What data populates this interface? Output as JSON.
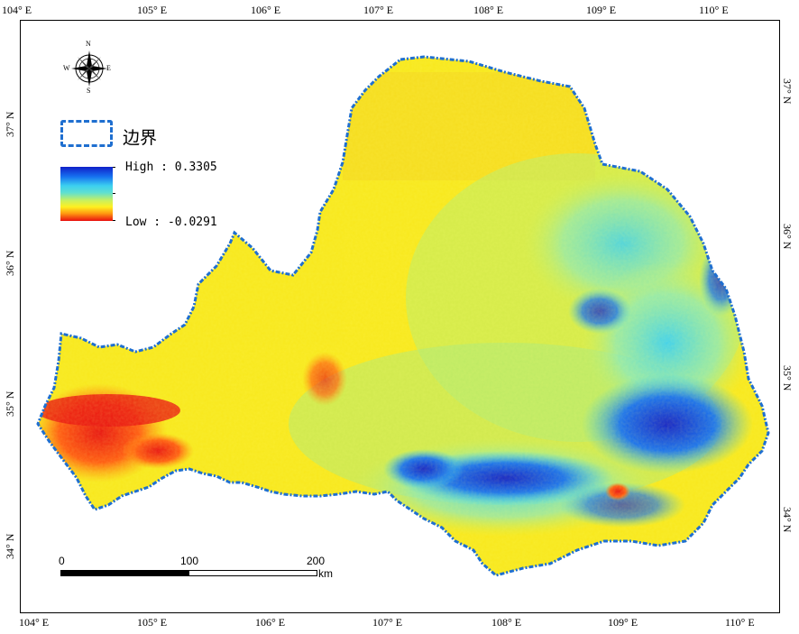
{
  "map": {
    "lon_labels": [
      "104° E",
      "105° E",
      "106° E",
      "107° E",
      "108° E",
      "109° E",
      "110° E"
    ],
    "lat_labels": [
      "37° N",
      "36° N",
      "35° N",
      "34° N"
    ],
    "legend": {
      "boundary_label": "边界",
      "high_label": "High : 0.3305",
      "low_label": "Low : -0.0291",
      "high_value": 0.3305,
      "low_value": -0.0291,
      "boundary_color": "#1f6fd0"
    },
    "scale": {
      "labels": [
        "0",
        "100",
        "200"
      ],
      "unit": "km"
    },
    "compass": {
      "n": "N",
      "s": "S",
      "e": "E",
      "w": "W"
    }
  },
  "colors": {
    "ramp": [
      "#e81010",
      "#ff9a10",
      "#fff020",
      "#c8f060",
      "#60e0d0",
      "#3cd0f0",
      "#1670f0",
      "#1020c8"
    ]
  }
}
